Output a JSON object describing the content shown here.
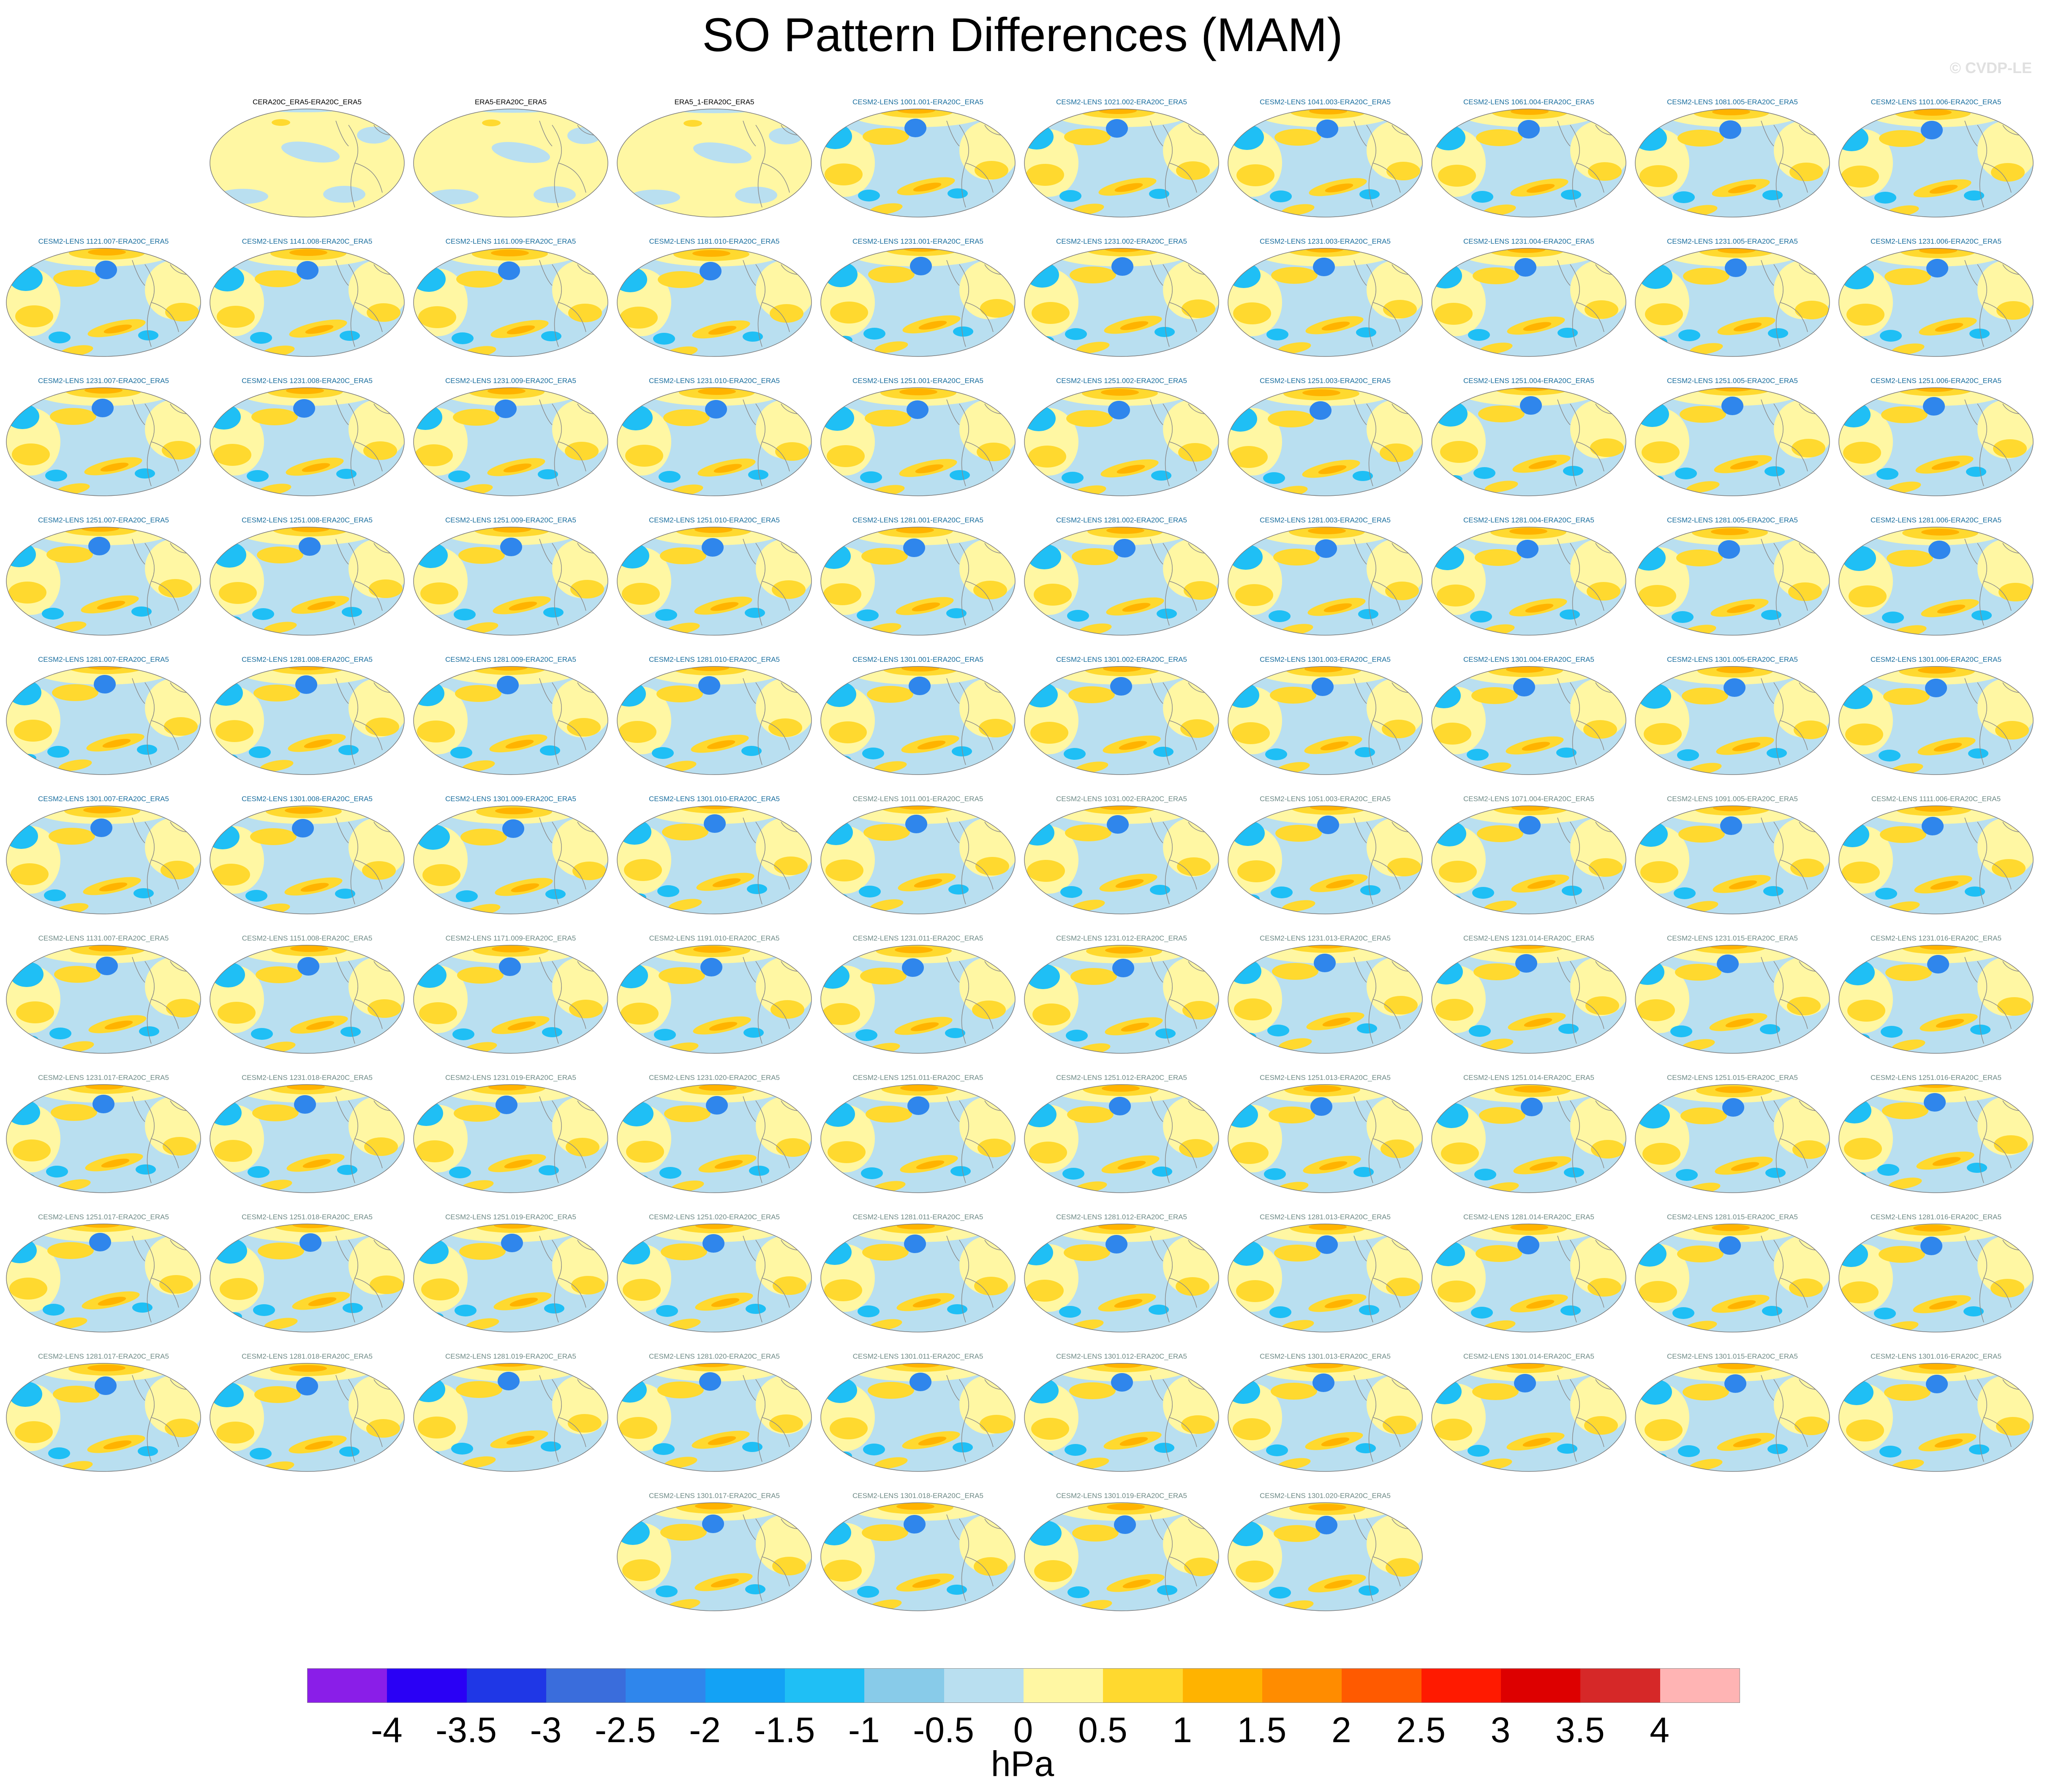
{
  "title": "SO Pattern Differences (MAM)",
  "watermark": "© CVDP-LE",
  "units": "hPa",
  "colorbar": {
    "colors": [
      "#8a1ee8",
      "#2a00f5",
      "#1f37e6",
      "#3a6ddc",
      "#2f86ec",
      "#13a2f5",
      "#1fbff5",
      "#88cbe9",
      "#b9dff0",
      "#fff7a3",
      "#ffd92f",
      "#ffb300",
      "#ff8c00",
      "#ff5a00",
      "#ff1a00",
      "#dd0000",
      "#d62828",
      "#ffb4b4"
    ],
    "labels": [
      "-4",
      "-3.5",
      "-3",
      "-2.5",
      "-2",
      "-1.5",
      "-1",
      "-0.5",
      "0",
      "0.5",
      "1",
      "1.5",
      "2",
      "2.5",
      "3",
      "3.5",
      "4"
    ]
  },
  "panels": [
    {
      "title": "CERA20C_ERA5-ERA20C_ERA5",
      "row": 0,
      "col": 1,
      "style": "black",
      "kind": "obs"
    },
    {
      "title": "ERA5-ERA20C_ERA5",
      "row": 0,
      "col": 2,
      "style": "black",
      "kind": "obs"
    },
    {
      "title": "ERA5_1-ERA20C_ERA5",
      "row": 0,
      "col": 3,
      "style": "black",
      "kind": "obs"
    },
    {
      "title": "CESM2-LENS 1001.001-ERA20C_ERA5",
      "row": 0,
      "col": 4,
      "style": "blue",
      "kind": "model"
    },
    {
      "title": "CESM2-LENS 1021.002-ERA20C_ERA5",
      "row": 0,
      "col": 5,
      "style": "blue",
      "kind": "model"
    },
    {
      "title": "CESM2-LENS 1041.003-ERA20C_ERA5",
      "row": 0,
      "col": 6,
      "style": "blue",
      "kind": "model"
    },
    {
      "title": "CESM2-LENS 1061.004-ERA20C_ERA5",
      "row": 0,
      "col": 7,
      "style": "blue",
      "kind": "model"
    },
    {
      "title": "CESM2-LENS 1081.005-ERA20C_ERA5",
      "row": 0,
      "col": 8,
      "style": "blue",
      "kind": "model"
    },
    {
      "title": "CESM2-LENS 1101.006-ERA20C_ERA5",
      "row": 0,
      "col": 9,
      "style": "blue",
      "kind": "model"
    },
    {
      "title": "CESM2-LENS 1121.007-ERA20C_ERA5",
      "row": 1,
      "col": 0,
      "style": "blue",
      "kind": "model"
    },
    {
      "title": "CESM2-LENS 1141.008-ERA20C_ERA5",
      "row": 1,
      "col": 1,
      "style": "blue",
      "kind": "model"
    },
    {
      "title": "CESM2-LENS 1161.009-ERA20C_ERA5",
      "row": 1,
      "col": 2,
      "style": "blue",
      "kind": "model"
    },
    {
      "title": "CESM2-LENS 1181.010-ERA20C_ERA5",
      "row": 1,
      "col": 3,
      "style": "blue",
      "kind": "model"
    },
    {
      "title": "CESM2-LENS 1231.001-ERA20C_ERA5",
      "row": 1,
      "col": 4,
      "style": "blue",
      "kind": "model"
    },
    {
      "title": "CESM2-LENS 1231.002-ERA20C_ERA5",
      "row": 1,
      "col": 5,
      "style": "blue",
      "kind": "model"
    },
    {
      "title": "CESM2-LENS 1231.003-ERA20C_ERA5",
      "row": 1,
      "col": 6,
      "style": "blue",
      "kind": "model"
    },
    {
      "title": "CESM2-LENS 1231.004-ERA20C_ERA5",
      "row": 1,
      "col": 7,
      "style": "blue",
      "kind": "model"
    },
    {
      "title": "CESM2-LENS 1231.005-ERA20C_ERA5",
      "row": 1,
      "col": 8,
      "style": "blue",
      "kind": "model"
    },
    {
      "title": "CESM2-LENS 1231.006-ERA20C_ERA5",
      "row": 1,
      "col": 9,
      "style": "blue",
      "kind": "model"
    },
    {
      "title": "CESM2-LENS 1231.007-ERA20C_ERA5",
      "row": 2,
      "col": 0,
      "style": "blue",
      "kind": "model"
    },
    {
      "title": "CESM2-LENS 1231.008-ERA20C_ERA5",
      "row": 2,
      "col": 1,
      "style": "blue",
      "kind": "model"
    },
    {
      "title": "CESM2-LENS 1231.009-ERA20C_ERA5",
      "row": 2,
      "col": 2,
      "style": "blue",
      "kind": "model"
    },
    {
      "title": "CESM2-LENS 1231.010-ERA20C_ERA5",
      "row": 2,
      "col": 3,
      "style": "blue",
      "kind": "model"
    },
    {
      "title": "CESM2-LENS 1251.001-ERA20C_ERA5",
      "row": 2,
      "col": 4,
      "style": "blue",
      "kind": "model"
    },
    {
      "title": "CESM2-LENS 1251.002-ERA20C_ERA5",
      "row": 2,
      "col": 5,
      "style": "blue",
      "kind": "model"
    },
    {
      "title": "CESM2-LENS 1251.003-ERA20C_ERA5",
      "row": 2,
      "col": 6,
      "style": "blue",
      "kind": "model"
    },
    {
      "title": "CESM2-LENS 1251.004-ERA20C_ERA5",
      "row": 2,
      "col": 7,
      "style": "blue",
      "kind": "model"
    },
    {
      "title": "CESM2-LENS 1251.005-ERA20C_ERA5",
      "row": 2,
      "col": 8,
      "style": "blue",
      "kind": "model"
    },
    {
      "title": "CESM2-LENS 1251.006-ERA20C_ERA5",
      "row": 2,
      "col": 9,
      "style": "blue",
      "kind": "model"
    },
    {
      "title": "CESM2-LENS 1251.007-ERA20C_ERA5",
      "row": 3,
      "col": 0,
      "style": "blue",
      "kind": "model"
    },
    {
      "title": "CESM2-LENS 1251.008-ERA20C_ERA5",
      "row": 3,
      "col": 1,
      "style": "blue",
      "kind": "model"
    },
    {
      "title": "CESM2-LENS 1251.009-ERA20C_ERA5",
      "row": 3,
      "col": 2,
      "style": "blue",
      "kind": "model"
    },
    {
      "title": "CESM2-LENS 1251.010-ERA20C_ERA5",
      "row": 3,
      "col": 3,
      "style": "blue",
      "kind": "model"
    },
    {
      "title": "CESM2-LENS 1281.001-ERA20C_ERA5",
      "row": 3,
      "col": 4,
      "style": "blue",
      "kind": "model"
    },
    {
      "title": "CESM2-LENS 1281.002-ERA20C_ERA5",
      "row": 3,
      "col": 5,
      "style": "blue",
      "kind": "model"
    },
    {
      "title": "CESM2-LENS 1281.003-ERA20C_ERA5",
      "row": 3,
      "col": 6,
      "style": "blue",
      "kind": "model"
    },
    {
      "title": "CESM2-LENS 1281.004-ERA20C_ERA5",
      "row": 3,
      "col": 7,
      "style": "blue",
      "kind": "model"
    },
    {
      "title": "CESM2-LENS 1281.005-ERA20C_ERA5",
      "row": 3,
      "col": 8,
      "style": "blue",
      "kind": "model"
    },
    {
      "title": "CESM2-LENS 1281.006-ERA20C_ERA5",
      "row": 3,
      "col": 9,
      "style": "blue",
      "kind": "model"
    },
    {
      "title": "CESM2-LENS 1281.007-ERA20C_ERA5",
      "row": 4,
      "col": 0,
      "style": "blue",
      "kind": "model"
    },
    {
      "title": "CESM2-LENS 1281.008-ERA20C_ERA5",
      "row": 4,
      "col": 1,
      "style": "blue",
      "kind": "model"
    },
    {
      "title": "CESM2-LENS 1281.009-ERA20C_ERA5",
      "row": 4,
      "col": 2,
      "style": "blue",
      "kind": "model"
    },
    {
      "title": "CESM2-LENS 1281.010-ERA20C_ERA5",
      "row": 4,
      "col": 3,
      "style": "blue",
      "kind": "model"
    },
    {
      "title": "CESM2-LENS 1301.001-ERA20C_ERA5",
      "row": 4,
      "col": 4,
      "style": "blue",
      "kind": "model"
    },
    {
      "title": "CESM2-LENS 1301.002-ERA20C_ERA5",
      "row": 4,
      "col": 5,
      "style": "blue",
      "kind": "model"
    },
    {
      "title": "CESM2-LENS 1301.003-ERA20C_ERA5",
      "row": 4,
      "col": 6,
      "style": "blue",
      "kind": "model"
    },
    {
      "title": "CESM2-LENS 1301.004-ERA20C_ERA5",
      "row": 4,
      "col": 7,
      "style": "blue",
      "kind": "model"
    },
    {
      "title": "CESM2-LENS 1301.005-ERA20C_ERA5",
      "row": 4,
      "col": 8,
      "style": "blue",
      "kind": "model"
    },
    {
      "title": "CESM2-LENS 1301.006-ERA20C_ERA5",
      "row": 4,
      "col": 9,
      "style": "blue",
      "kind": "model"
    },
    {
      "title": "CESM2-LENS 1301.007-ERA20C_ERA5",
      "row": 5,
      "col": 0,
      "style": "blue",
      "kind": "model"
    },
    {
      "title": "CESM2-LENS 1301.008-ERA20C_ERA5",
      "row": 5,
      "col": 1,
      "style": "blue",
      "kind": "model"
    },
    {
      "title": "CESM2-LENS 1301.009-ERA20C_ERA5",
      "row": 5,
      "col": 2,
      "style": "blue",
      "kind": "model"
    },
    {
      "title": "CESM2-LENS 1301.010-ERA20C_ERA5",
      "row": 5,
      "col": 3,
      "style": "blue",
      "kind": "model"
    },
    {
      "title": "CESM2-LENS 1011.001-ERA20C_ERA5",
      "row": 5,
      "col": 4,
      "style": "gray",
      "kind": "model"
    },
    {
      "title": "CESM2-LENS 1031.002-ERA20C_ERA5",
      "row": 5,
      "col": 5,
      "style": "gray",
      "kind": "model"
    },
    {
      "title": "CESM2-LENS 1051.003-ERA20C_ERA5",
      "row": 5,
      "col": 6,
      "style": "gray",
      "kind": "model"
    },
    {
      "title": "CESM2-LENS 1071.004-ERA20C_ERA5",
      "row": 5,
      "col": 7,
      "style": "gray",
      "kind": "model"
    },
    {
      "title": "CESM2-LENS 1091.005-ERA20C_ERA5",
      "row": 5,
      "col": 8,
      "style": "gray",
      "kind": "model"
    },
    {
      "title": "CESM2-LENS 1111.006-ERA20C_ERA5",
      "row": 5,
      "col": 9,
      "style": "gray",
      "kind": "model"
    },
    {
      "title": "CESM2-LENS 1131.007-ERA20C_ERA5",
      "row": 6,
      "col": 0,
      "style": "gray",
      "kind": "model"
    },
    {
      "title": "CESM2-LENS 1151.008-ERA20C_ERA5",
      "row": 6,
      "col": 1,
      "style": "gray",
      "kind": "model"
    },
    {
      "title": "CESM2-LENS 1171.009-ERA20C_ERA5",
      "row": 6,
      "col": 2,
      "style": "gray",
      "kind": "model"
    },
    {
      "title": "CESM2-LENS 1191.010-ERA20C_ERA5",
      "row": 6,
      "col": 3,
      "style": "gray",
      "kind": "model"
    },
    {
      "title": "CESM2-LENS 1231.011-ERA20C_ERA5",
      "row": 6,
      "col": 4,
      "style": "gray",
      "kind": "model"
    },
    {
      "title": "CESM2-LENS 1231.012-ERA20C_ERA5",
      "row": 6,
      "col": 5,
      "style": "gray",
      "kind": "model"
    },
    {
      "title": "CESM2-LENS 1231.013-ERA20C_ERA5",
      "row": 6,
      "col": 6,
      "style": "gray",
      "kind": "model"
    },
    {
      "title": "CESM2-LENS 1231.014-ERA20C_ERA5",
      "row": 6,
      "col": 7,
      "style": "gray",
      "kind": "model"
    },
    {
      "title": "CESM2-LENS 1231.015-ERA20C_ERA5",
      "row": 6,
      "col": 8,
      "style": "gray",
      "kind": "model"
    },
    {
      "title": "CESM2-LENS 1231.016-ERA20C_ERA5",
      "row": 6,
      "col": 9,
      "style": "gray",
      "kind": "model"
    },
    {
      "title": "CESM2-LENS 1231.017-ERA20C_ERA5",
      "row": 7,
      "col": 0,
      "style": "gray",
      "kind": "model"
    },
    {
      "title": "CESM2-LENS 1231.018-ERA20C_ERA5",
      "row": 7,
      "col": 1,
      "style": "gray",
      "kind": "model"
    },
    {
      "title": "CESM2-LENS 1231.019-ERA20C_ERA5",
      "row": 7,
      "col": 2,
      "style": "gray",
      "kind": "model"
    },
    {
      "title": "CESM2-LENS 1231.020-ERA20C_ERA5",
      "row": 7,
      "col": 3,
      "style": "gray",
      "kind": "model"
    },
    {
      "title": "CESM2-LENS 1251.011-ERA20C_ERA5",
      "row": 7,
      "col": 4,
      "style": "gray",
      "kind": "model"
    },
    {
      "title": "CESM2-LENS 1251.012-ERA20C_ERA5",
      "row": 7,
      "col": 5,
      "style": "gray",
      "kind": "model"
    },
    {
      "title": "CESM2-LENS 1251.013-ERA20C_ERA5",
      "row": 7,
      "col": 6,
      "style": "gray",
      "kind": "model"
    },
    {
      "title": "CESM2-LENS 1251.014-ERA20C_ERA5",
      "row": 7,
      "col": 7,
      "style": "gray",
      "kind": "model"
    },
    {
      "title": "CESM2-LENS 1251.015-ERA20C_ERA5",
      "row": 7,
      "col": 8,
      "style": "gray",
      "kind": "model"
    },
    {
      "title": "CESM2-LENS 1251.016-ERA20C_ERA5",
      "row": 7,
      "col": 9,
      "style": "gray",
      "kind": "model"
    },
    {
      "title": "CESM2-LENS 1251.017-ERA20C_ERA5",
      "row": 8,
      "col": 0,
      "style": "gray",
      "kind": "model"
    },
    {
      "title": "CESM2-LENS 1251.018-ERA20C_ERA5",
      "row": 8,
      "col": 1,
      "style": "gray",
      "kind": "model"
    },
    {
      "title": "CESM2-LENS 1251.019-ERA20C_ERA5",
      "row": 8,
      "col": 2,
      "style": "gray",
      "kind": "model"
    },
    {
      "title": "CESM2-LENS 1251.020-ERA20C_ERA5",
      "row": 8,
      "col": 3,
      "style": "gray",
      "kind": "model"
    },
    {
      "title": "CESM2-LENS 1281.011-ERA20C_ERA5",
      "row": 8,
      "col": 4,
      "style": "gray",
      "kind": "model"
    },
    {
      "title": "CESM2-LENS 1281.012-ERA20C_ERA5",
      "row": 8,
      "col": 5,
      "style": "gray",
      "kind": "model"
    },
    {
      "title": "CESM2-LENS 1281.013-ERA20C_ERA5",
      "row": 8,
      "col": 6,
      "style": "gray",
      "kind": "model"
    },
    {
      "title": "CESM2-LENS 1281.014-ERA20C_ERA5",
      "row": 8,
      "col": 7,
      "style": "gray",
      "kind": "model"
    },
    {
      "title": "CESM2-LENS 1281.015-ERA20C_ERA5",
      "row": 8,
      "col": 8,
      "style": "gray",
      "kind": "model"
    },
    {
      "title": "CESM2-LENS 1281.016-ERA20C_ERA5",
      "row": 8,
      "col": 9,
      "style": "gray",
      "kind": "model"
    },
    {
      "title": "CESM2-LENS 1281.017-ERA20C_ERA5",
      "row": 9,
      "col": 0,
      "style": "gray",
      "kind": "model"
    },
    {
      "title": "CESM2-LENS 1281.018-ERA20C_ERA5",
      "row": 9,
      "col": 1,
      "style": "gray",
      "kind": "model"
    },
    {
      "title": "CESM2-LENS 1281.019-ERA20C_ERA5",
      "row": 9,
      "col": 2,
      "style": "gray",
      "kind": "model"
    },
    {
      "title": "CESM2-LENS 1281.020-ERA20C_ERA5",
      "row": 9,
      "col": 3,
      "style": "gray",
      "kind": "model"
    },
    {
      "title": "CESM2-LENS 1301.011-ERA20C_ERA5",
      "row": 9,
      "col": 4,
      "style": "gray",
      "kind": "model"
    },
    {
      "title": "CESM2-LENS 1301.012-ERA20C_ERA5",
      "row": 9,
      "col": 5,
      "style": "gray",
      "kind": "model"
    },
    {
      "title": "CESM2-LENS 1301.013-ERA20C_ERA5",
      "row": 9,
      "col": 6,
      "style": "gray",
      "kind": "model"
    },
    {
      "title": "CESM2-LENS 1301.014-ERA20C_ERA5",
      "row": 9,
      "col": 7,
      "style": "gray",
      "kind": "model"
    },
    {
      "title": "CESM2-LENS 1301.015-ERA20C_ERA5",
      "row": 9,
      "col": 8,
      "style": "gray",
      "kind": "model"
    },
    {
      "title": "CESM2-LENS 1301.016-ERA20C_ERA5",
      "row": 9,
      "col": 9,
      "style": "gray",
      "kind": "model"
    },
    {
      "title": "CESM2-LENS 1301.017-ERA20C_ERA5",
      "row": 10,
      "col": 3,
      "style": "gray",
      "kind": "model"
    },
    {
      "title": "CESM2-LENS 1301.018-ERA20C_ERA5",
      "row": 10,
      "col": 4,
      "style": "gray",
      "kind": "model"
    },
    {
      "title": "CESM2-LENS 1301.019-ERA20C_ERA5",
      "row": 10,
      "col": 5,
      "style": "gray",
      "kind": "model"
    },
    {
      "title": "CESM2-LENS 1301.020-ERA20C_ERA5",
      "row": 10,
      "col": 6,
      "style": "gray",
      "kind": "model"
    }
  ]
}
